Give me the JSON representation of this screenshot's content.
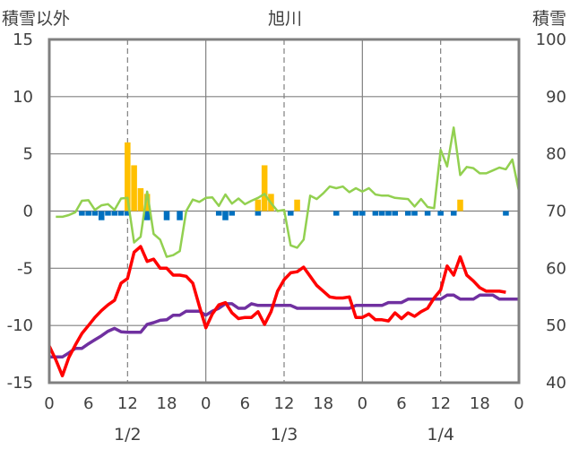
{
  "chart_data": {
    "type": "bar+line",
    "title": "旭川",
    "left_axis_label": "積雪以外",
    "right_axis_label": "積雪",
    "left_axis": {
      "min": -15,
      "max": 15,
      "ticks": [
        15,
        10,
        5,
        0,
        -5,
        -10,
        -15
      ]
    },
    "right_axis": {
      "min": 40,
      "max": 100,
      "ticks": [
        100,
        90,
        80,
        70,
        60,
        50,
        40
      ]
    },
    "x_axis": {
      "hours_total": 72,
      "tick_labels": [
        "0",
        "6",
        "12",
        "18",
        "0",
        "6",
        "12",
        "18",
        "0",
        "6",
        "12",
        "18",
        "0"
      ],
      "day_labels": [
        "1/2",
        "1/3",
        "1/4"
      ]
    },
    "grid": {
      "solid_every_hours": 24,
      "dashed_at_hours": [
        12,
        36,
        60
      ]
    },
    "colors": {
      "bar_positive": "#ffc000",
      "bar_negative": "#0070c0",
      "red_line": "#ff0000",
      "purple_line": "#7030a0",
      "green_line": "#92d050",
      "frame": "#808080"
    },
    "bars_positive": [
      {
        "x": 12,
        "v": 6.0
      },
      {
        "x": 13,
        "v": 4.0
      },
      {
        "x": 14,
        "v": 2.0
      },
      {
        "x": 15,
        "v": 1.5
      },
      {
        "x": 32,
        "v": 1.0
      },
      {
        "x": 33,
        "v": 4.0
      },
      {
        "x": 34,
        "v": 1.5
      },
      {
        "x": 38,
        "v": 1.0
      },
      {
        "x": 63,
        "v": 1.0
      }
    ],
    "bars_negative": [
      {
        "x": 5,
        "v": -0.4
      },
      {
        "x": 6,
        "v": -0.4
      },
      {
        "x": 7,
        "v": -0.4
      },
      {
        "x": 8,
        "v": -0.8
      },
      {
        "x": 9,
        "v": -0.4
      },
      {
        "x": 10,
        "v": -0.4
      },
      {
        "x": 11,
        "v": -0.4
      },
      {
        "x": 12,
        "v": -0.4
      },
      {
        "x": 15,
        "v": -0.8
      },
      {
        "x": 18,
        "v": -0.8
      },
      {
        "x": 20,
        "v": -0.8
      },
      {
        "x": 26,
        "v": -0.4
      },
      {
        "x": 27,
        "v": -0.8
      },
      {
        "x": 28,
        "v": -0.4
      },
      {
        "x": 32,
        "v": -0.4
      },
      {
        "x": 37,
        "v": -0.4
      },
      {
        "x": 44,
        "v": -0.4
      },
      {
        "x": 47,
        "v": -0.4
      },
      {
        "x": 48,
        "v": -0.4
      },
      {
        "x": 50,
        "v": -0.4
      },
      {
        "x": 51,
        "v": -0.4
      },
      {
        "x": 52,
        "v": -0.4
      },
      {
        "x": 53,
        "v": -0.4
      },
      {
        "x": 55,
        "v": -0.4
      },
      {
        "x": 56,
        "v": -0.4
      },
      {
        "x": 58,
        "v": -0.4
      },
      {
        "x": 60,
        "v": -0.4
      },
      {
        "x": 62,
        "v": -0.4
      },
      {
        "x": 70,
        "v": -0.4
      }
    ],
    "red_line": [
      [
        0,
        -11.8
      ],
      [
        1,
        -13.0
      ],
      [
        2,
        -14.4
      ],
      [
        3,
        -12.8
      ],
      [
        4,
        -11.7
      ],
      [
        5,
        -10.7
      ],
      [
        6,
        -10.0
      ],
      [
        7,
        -9.3
      ],
      [
        8,
        -8.7
      ],
      [
        9,
        -8.2
      ],
      [
        10,
        -7.8
      ],
      [
        11,
        -6.3
      ],
      [
        12,
        -5.9
      ],
      [
        13,
        -3.6
      ],
      [
        14,
        -3.1
      ],
      [
        15,
        -4.4
      ],
      [
        16,
        -4.2
      ],
      [
        17,
        -5.0
      ],
      [
        18,
        -5.0
      ],
      [
        19,
        -5.6
      ],
      [
        20,
        -5.6
      ],
      [
        21,
        -5.7
      ],
      [
        22,
        -6.3
      ],
      [
        23,
        -8.3
      ],
      [
        24,
        -10.2
      ],
      [
        25,
        -9.0
      ],
      [
        26,
        -8.2
      ],
      [
        27,
        -8.0
      ],
      [
        28,
        -8.9
      ],
      [
        29,
        -9.4
      ],
      [
        30,
        -9.3
      ],
      [
        31,
        -9.3
      ],
      [
        32,
        -8.8
      ],
      [
        33,
        -9.9
      ],
      [
        34,
        -8.8
      ],
      [
        35,
        -7.0
      ],
      [
        36,
        -6.0
      ],
      [
        37,
        -5.4
      ],
      [
        38,
        -5.3
      ],
      [
        39,
        -4.9
      ],
      [
        40,
        -5.7
      ],
      [
        41,
        -6.5
      ],
      [
        42,
        -7.0
      ],
      [
        43,
        -7.5
      ],
      [
        44,
        -7.6
      ],
      [
        45,
        -7.6
      ],
      [
        46,
        -7.5
      ],
      [
        47,
        -9.3
      ],
      [
        48,
        -9.3
      ],
      [
        49,
        -9.0
      ],
      [
        50,
        -9.5
      ],
      [
        51,
        -9.5
      ],
      [
        52,
        -9.6
      ],
      [
        53,
        -8.9
      ],
      [
        54,
        -9.4
      ],
      [
        55,
        -8.9
      ],
      [
        56,
        -9.2
      ],
      [
        57,
        -8.8
      ],
      [
        58,
        -8.5
      ],
      [
        59,
        -7.6
      ],
      [
        60,
        -6.9
      ],
      [
        61,
        -4.8
      ],
      [
        62,
        -5.6
      ],
      [
        63,
        -4.0
      ],
      [
        64,
        -5.6
      ],
      [
        65,
        -6.1
      ],
      [
        66,
        -6.7
      ],
      [
        67,
        -7.0
      ],
      [
        68,
        -7.0
      ],
      [
        69,
        -7.0
      ],
      [
        70,
        -7.1
      ]
    ],
    "purple_line": [
      [
        0,
        44.5
      ],
      [
        1,
        44.5
      ],
      [
        2,
        44.5
      ],
      [
        3,
        45.2
      ],
      [
        4,
        46.0
      ],
      [
        5,
        46.0
      ],
      [
        6,
        46.8
      ],
      [
        7,
        47.5
      ],
      [
        8,
        48.2
      ],
      [
        9,
        49.0
      ],
      [
        10,
        49.5
      ],
      [
        11,
        48.9
      ],
      [
        12,
        48.8
      ],
      [
        13,
        48.8
      ],
      [
        14,
        48.8
      ],
      [
        15,
        50.2
      ],
      [
        16,
        50.5
      ],
      [
        17,
        50.9
      ],
      [
        18,
        51.0
      ],
      [
        19,
        51.8
      ],
      [
        20,
        51.8
      ],
      [
        21,
        52.5
      ],
      [
        22,
        52.5
      ],
      [
        23,
        52.5
      ],
      [
        24,
        51.8
      ],
      [
        25,
        52.5
      ],
      [
        26,
        53.0
      ],
      [
        27,
        53.8
      ],
      [
        28,
        53.8
      ],
      [
        29,
        53.0
      ],
      [
        30,
        53.0
      ],
      [
        31,
        53.8
      ],
      [
        32,
        53.5
      ],
      [
        33,
        53.5
      ],
      [
        34,
        53.5
      ],
      [
        35,
        53.5
      ],
      [
        36,
        53.5
      ],
      [
        37,
        53.5
      ],
      [
        38,
        53.0
      ],
      [
        39,
        53.0
      ],
      [
        40,
        53.0
      ],
      [
        41,
        53.0
      ],
      [
        42,
        53.0
      ],
      [
        43,
        53.0
      ],
      [
        44,
        53.0
      ],
      [
        45,
        53.0
      ],
      [
        46,
        53.0
      ],
      [
        47,
        53.5
      ],
      [
        48,
        53.5
      ],
      [
        49,
        53.5
      ],
      [
        50,
        53.5
      ],
      [
        51,
        53.5
      ],
      [
        52,
        54.0
      ],
      [
        53,
        54.0
      ],
      [
        54,
        54.0
      ],
      [
        55,
        54.6
      ],
      [
        56,
        54.6
      ],
      [
        57,
        54.6
      ],
      [
        58,
        54.6
      ],
      [
        59,
        54.6
      ],
      [
        60,
        54.6
      ],
      [
        61,
        55.3
      ],
      [
        62,
        55.3
      ],
      [
        63,
        54.6
      ],
      [
        64,
        54.6
      ],
      [
        65,
        54.6
      ],
      [
        66,
        55.3
      ],
      [
        67,
        55.3
      ],
      [
        68,
        55.3
      ],
      [
        69,
        54.6
      ],
      [
        70,
        54.6
      ],
      [
        71,
        54.6
      ],
      [
        72,
        54.6
      ]
    ],
    "green_line": [
      [
        1,
        69.0
      ],
      [
        2,
        69.0
      ],
      [
        3,
        69.3
      ],
      [
        4,
        69.8
      ],
      [
        5,
        71.8
      ],
      [
        6,
        71.9
      ],
      [
        7,
        70.2
      ],
      [
        8,
        71.0
      ],
      [
        9,
        71.2
      ],
      [
        10,
        70.2
      ],
      [
        11,
        72.2
      ],
      [
        12,
        72.3
      ],
      [
        13,
        64.5
      ],
      [
        14,
        65.5
      ],
      [
        15,
        73.4
      ],
      [
        16,
        66.0
      ],
      [
        17,
        65.0
      ],
      [
        18,
        62.0
      ],
      [
        19,
        62.3
      ],
      [
        20,
        63.0
      ],
      [
        21,
        70.0
      ],
      [
        22,
        72.0
      ],
      [
        23,
        71.6
      ],
      [
        24,
        72.3
      ],
      [
        25,
        72.4
      ],
      [
        26,
        70.9
      ],
      [
        27,
        72.9
      ],
      [
        28,
        71.3
      ],
      [
        29,
        72.2
      ],
      [
        30,
        71.2
      ],
      [
        31,
        71.8
      ],
      [
        32,
        72.3
      ],
      [
        33,
        73.0
      ],
      [
        34,
        71.4
      ],
      [
        35,
        70.0
      ],
      [
        36,
        70.2
      ],
      [
        37,
        64.0
      ],
      [
        38,
        63.6
      ],
      [
        39,
        65.0
      ],
      [
        40,
        72.7
      ],
      [
        41,
        72.1
      ],
      [
        42,
        73.1
      ],
      [
        43,
        74.3
      ],
      [
        44,
        74.0
      ],
      [
        45,
        74.3
      ],
      [
        46,
        73.3
      ],
      [
        47,
        74.0
      ],
      [
        48,
        73.4
      ],
      [
        49,
        74.0
      ],
      [
        50,
        72.9
      ],
      [
        51,
        72.7
      ],
      [
        52,
        72.7
      ],
      [
        53,
        72.3
      ],
      [
        54,
        72.2
      ],
      [
        55,
        72.1
      ],
      [
        56,
        70.8
      ],
      [
        57,
        72.1
      ],
      [
        58,
        70.7
      ],
      [
        59,
        70.5
      ],
      [
        60,
        80.7
      ],
      [
        61,
        77.8
      ],
      [
        62,
        84.6
      ],
      [
        63,
        76.3
      ],
      [
        64,
        77.7
      ],
      [
        65,
        77.5
      ],
      [
        66,
        76.6
      ],
      [
        67,
        76.6
      ],
      [
        68,
        77.1
      ],
      [
        69,
        77.6
      ],
      [
        70,
        77.3
      ],
      [
        71,
        79.0
      ],
      [
        72,
        73.5
      ]
    ]
  }
}
